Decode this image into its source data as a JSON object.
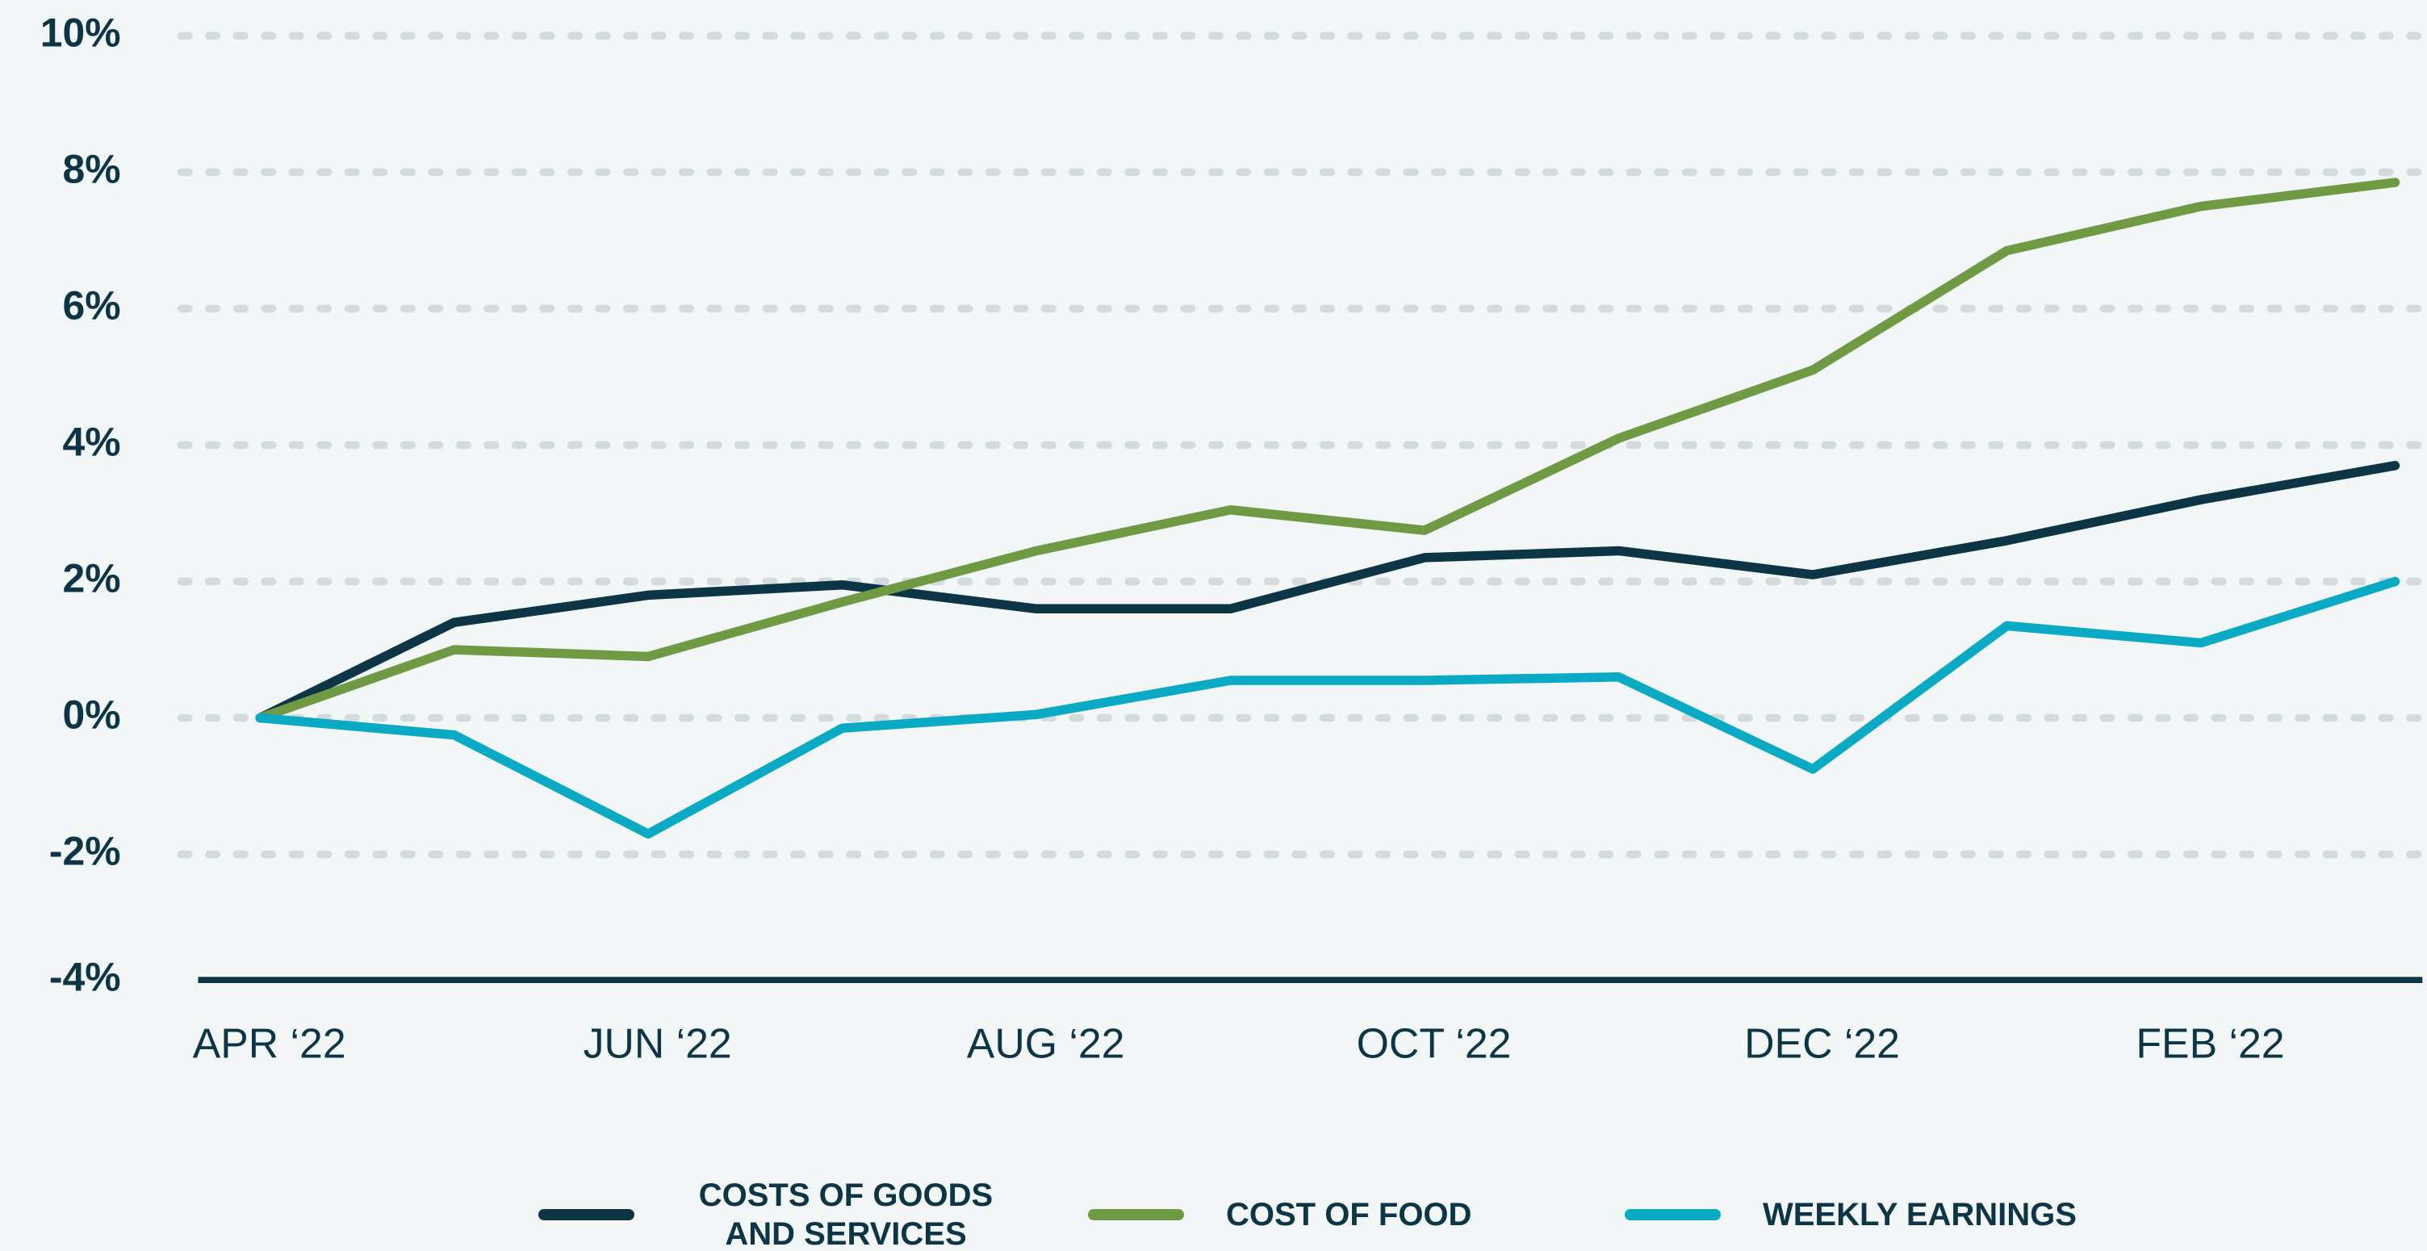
{
  "chart_data": {
    "type": "line",
    "categories": [
      "APR ‘22",
      null,
      "JUN ‘22",
      null,
      "AUG ‘22",
      null,
      "OCT ‘22",
      null,
      "DEC ‘22",
      null,
      "FEB ‘22",
      null
    ],
    "series": [
      {
        "name": "COSTS OF GOODS AND SERVICES",
        "color": "#0c3646",
        "values": [
          0,
          1.4,
          1.8,
          1.95,
          1.6,
          1.6,
          2.35,
          2.45,
          2.1,
          2.6,
          3.2,
          3.7
        ]
      },
      {
        "name": "COST OF FOOD",
        "color": "#6f9a43",
        "values": [
          0,
          1.0,
          0.9,
          1.7,
          2.45,
          3.05,
          2.75,
          4.1,
          5.1,
          6.85,
          7.5,
          7.85
        ]
      },
      {
        "name": "WEEKLY EARNINGS",
        "color": "#0aa9c4",
        "values": [
          0,
          -0.25,
          -1.7,
          -0.15,
          0.05,
          0.55,
          0.55,
          0.6,
          -0.75,
          1.35,
          1.1,
          2.0
        ]
      }
    ],
    "ylim": [
      -4,
      10
    ],
    "yticks": [
      {
        "value": -4,
        "label": "-4%"
      },
      {
        "value": -2,
        "label": "-2%"
      },
      {
        "value": 0,
        "label": "0%"
      },
      {
        "value": 2,
        "label": "2%"
      },
      {
        "value": 4,
        "label": "4%"
      },
      {
        "value": 6,
        "label": "6%"
      },
      {
        "value": 8,
        "label": "8%"
      },
      {
        "value": 10,
        "label": "10%"
      }
    ],
    "grid": true,
    "legend": "bottom"
  }
}
